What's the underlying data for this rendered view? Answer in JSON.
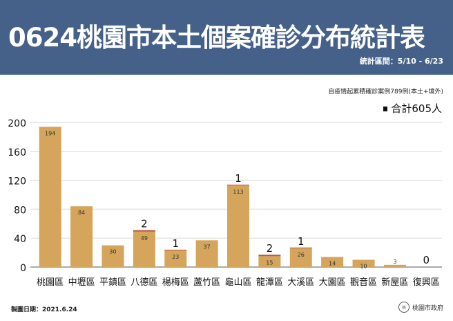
{
  "header": {
    "title": "0624桃園市本土個案確診分布統計表",
    "range": "統計區間：5/10 - 6/23"
  },
  "note": "自疫情起累積確診案例789例(本土+境外)",
  "total": "合計605人",
  "footer": {
    "date": "製圖日期：2021.6.24",
    "logo": "桃園市政府"
  },
  "colors": {
    "header": "#456189",
    "bar": "#d4a55a",
    "new": "#b9553a"
  },
  "chart_data": {
    "type": "bar",
    "stacked": true,
    "categories": [
      "桃園區",
      "中壢區",
      "平鎮區",
      "八德區",
      "楊梅區",
      "蘆竹區",
      "龜山區",
      "龍潭區",
      "大溪區",
      "大園區",
      "觀音區",
      "新屋區",
      "復興區"
    ],
    "series": [
      {
        "values": [
          194,
          84,
          30,
          49,
          23,
          37,
          113,
          15,
          26,
          14,
          10,
          3,
          0
        ]
      },
      {
        "values": [
          0,
          0,
          0,
          2,
          1,
          0,
          1,
          2,
          1,
          0,
          0,
          0,
          0
        ]
      }
    ],
    "new_labels": [
      "",
      "",
      "",
      "2",
      "1",
      "",
      "1",
      "2",
      "1",
      "",
      "",
      "",
      "0"
    ],
    "yticks": [
      0,
      40,
      80,
      120,
      160,
      200
    ],
    "ylim": [
      0,
      200
    ],
    "grid": true
  }
}
